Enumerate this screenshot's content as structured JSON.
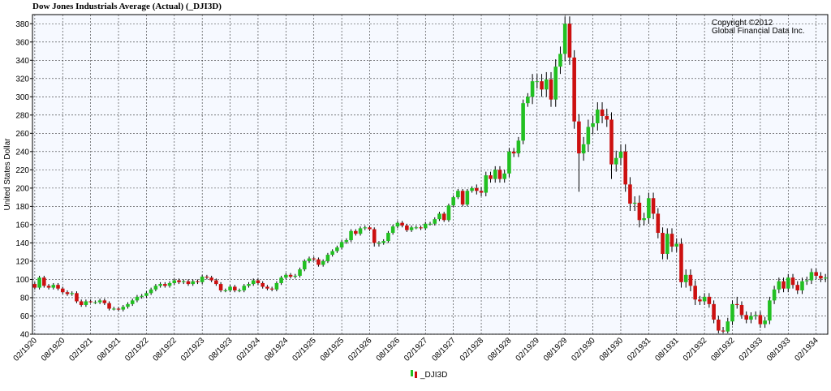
{
  "chart_data": {
    "type": "candlestick",
    "title": "Dow Jones Industrials Average (Actual) (_DJI3D)",
    "y_label": "United States Dollar",
    "annotation": [
      "Copyright ©2012",
      "Global Financial Data Inc."
    ],
    "grid": true,
    "up_color": "#22c022",
    "down_color": "#cc1010",
    "wick_color": "#000000",
    "ylim": [
      40,
      390
    ],
    "yticks": [
      40,
      60,
      80,
      100,
      120,
      140,
      160,
      180,
      200,
      220,
      240,
      260,
      280,
      300,
      320,
      340,
      360,
      380
    ],
    "categories": [
      "02/1920",
      null,
      null,
      null,
      null,
      null,
      "08/1920",
      null,
      null,
      null,
      null,
      null,
      "02/1921",
      null,
      null,
      null,
      null,
      null,
      "08/1921",
      null,
      null,
      null,
      null,
      null,
      "02/1922",
      null,
      null,
      null,
      null,
      null,
      "08/1922",
      null,
      null,
      null,
      null,
      null,
      "02/1923",
      null,
      null,
      null,
      null,
      null,
      "08/1923",
      null,
      null,
      null,
      null,
      null,
      "02/1924",
      null,
      null,
      null,
      null,
      null,
      "08/1924",
      null,
      null,
      null,
      null,
      null,
      "02/1925",
      null,
      null,
      null,
      null,
      null,
      "08/1925",
      null,
      null,
      null,
      null,
      null,
      "02/1926",
      null,
      null,
      null,
      null,
      null,
      "08/1926",
      null,
      null,
      null,
      null,
      null,
      "02/1927",
      null,
      null,
      null,
      null,
      null,
      "08/1927",
      null,
      null,
      null,
      null,
      null,
      "02/1928",
      null,
      null,
      null,
      null,
      null,
      "08/1928",
      null,
      null,
      null,
      null,
      null,
      "02/1929",
      null,
      null,
      null,
      null,
      null,
      "08/1929",
      null,
      null,
      null,
      null,
      null,
      "02/1930",
      null,
      null,
      null,
      null,
      null,
      "08/1930",
      null,
      null,
      null,
      null,
      null,
      "02/1931",
      null,
      null,
      null,
      null,
      null,
      "08/1931",
      null,
      null,
      null,
      null,
      null,
      "02/1932",
      null,
      null,
      null,
      null,
      null,
      "08/1932",
      null,
      null,
      null,
      null,
      null,
      "02/1933",
      null,
      null,
      null,
      null,
      null,
      "08/1933",
      null,
      null,
      null,
      null,
      null,
      "02/1934",
      null,
      null
    ],
    "series": [
      {
        "name": "_DJI3D",
        "open": [
          95,
          91,
          102,
          93,
          91,
          94,
          90,
          86,
          84,
          85,
          76,
          72,
          76,
          75,
          75,
          77,
          74,
          68,
          68,
          67,
          70,
          73,
          77,
          81,
          82,
          85,
          89,
          93,
          95,
          93,
          96,
          99,
          97,
          98,
          95,
          98,
          97,
          103,
          102,
          99,
          95,
          88,
          88,
          92,
          88,
          88,
          93,
          95,
          99,
          96,
          92,
          90,
          89,
          96,
          102,
          105,
          103,
          104,
          111,
          120,
          123,
          122,
          116,
          120,
          127,
          131,
          135,
          141,
          143,
          153,
          150,
          156,
          157,
          155,
          140,
          140,
          142,
          151,
          158,
          162,
          159,
          154,
          157,
          157,
          156,
          161,
          161,
          166,
          172,
          165,
          181,
          190,
          197,
          182,
          197,
          200,
          197,
          195,
          214,
          210,
          220,
          210,
          216,
          240,
          238,
          252,
          293,
          300,
          317,
          317,
          308,
          319,
          297,
          333,
          347,
          380,
          343,
          273,
          238,
          248,
          267,
          271,
          286,
          279,
          275,
          226,
          233,
          240,
          204,
          183,
          184,
          165,
          167,
          189,
          172,
          151,
          128,
          150,
          136,
          139,
          97,
          105,
          93,
          78,
          76,
          81,
          73,
          56,
          44,
          43,
          54,
          73,
          72,
          61,
          56,
          60,
          61,
          51,
          55,
          77,
          89,
          98,
          90,
          102,
          94,
          88,
          98,
          99,
          108,
          104,
          101
        ],
        "high": [
          97,
          104,
          104,
          95,
          96,
          96,
          92,
          88,
          87,
          87,
          78,
          78,
          78,
          77,
          79,
          79,
          76,
          70,
          70,
          72,
          75,
          79,
          83,
          84,
          87,
          91,
          95,
          97,
          97,
          98,
          101,
          101,
          100,
          100,
          100,
          100,
          105,
          105,
          104,
          101,
          97,
          90,
          94,
          94,
          90,
          95,
          97,
          101,
          101,
          98,
          94,
          92,
          98,
          104,
          107,
          107,
          106,
          113,
          122,
          125,
          125,
          124,
          122,
          129,
          133,
          137,
          143,
          145,
          155,
          155,
          158,
          159,
          159,
          157,
          142,
          144,
          153,
          160,
          164,
          164,
          161,
          159,
          159,
          159,
          163,
          163,
          168,
          174,
          174,
          183,
          192,
          199,
          199,
          199,
          202,
          204,
          201,
          218,
          218,
          224,
          224,
          220,
          244,
          244,
          256,
          297,
          304,
          325,
          325,
          325,
          327,
          327,
          341,
          355,
          388,
          388,
          351,
          281,
          256,
          275,
          279,
          294,
          294,
          287,
          283,
          241,
          248,
          248,
          212,
          191,
          192,
          173,
          195,
          195,
          178,
          157,
          156,
          156,
          145,
          145,
          111,
          111,
          99,
          82,
          85,
          85,
          77,
          60,
          48,
          58,
          77,
          81,
          76,
          65,
          64,
          65,
          65,
          59,
          81,
          93,
          102,
          102,
          106,
          106,
          98,
          102,
          103,
          112,
          112,
          108,
          106
        ],
        "low": [
          89,
          89,
          91,
          89,
          89,
          88,
          84,
          82,
          82,
          74,
          70,
          70,
          74,
          73,
          73,
          72,
          66,
          66,
          65,
          65,
          68,
          71,
          75,
          79,
          80,
          83,
          87,
          91,
          91,
          91,
          94,
          95,
          95,
          93,
          93,
          95,
          95,
          100,
          97,
          93,
          86,
          86,
          86,
          86,
          86,
          86,
          91,
          93,
          94,
          90,
          88,
          87,
          87,
          94,
          100,
          101,
          101,
          102,
          109,
          118,
          120,
          114,
          114,
          118,
          125,
          129,
          133,
          139,
          141,
          148,
          148,
          154,
          153,
          136,
          136,
          138,
          140,
          149,
          156,
          157,
          152,
          152,
          155,
          154,
          154,
          159,
          159,
          164,
          163,
          163,
          179,
          188,
          180,
          180,
          195,
          193,
          191,
          191,
          206,
          206,
          206,
          206,
          212,
          234,
          234,
          248,
          289,
          292,
          309,
          300,
          300,
          289,
          289,
          325,
          339,
          335,
          265,
          196,
          230,
          240,
          259,
          263,
          271,
          267,
          210,
          218,
          225,
          196,
          175,
          175,
          157,
          159,
          161,
          166,
          145,
          122,
          122,
          130,
          130,
          91,
          91,
          87,
          72,
          72,
          72,
          69,
          52,
          41,
          41,
          41,
          50,
          68,
          57,
          52,
          52,
          56,
          47,
          47,
          51,
          73,
          85,
          86,
          86,
          90,
          84,
          84,
          94,
          95,
          100,
          97,
          97
        ],
        "close": [
          91,
          102,
          93,
          91,
          94,
          90,
          86,
          84,
          85,
          76,
          72,
          76,
          75,
          75,
          77,
          74,
          68,
          68,
          67,
          70,
          73,
          77,
          81,
          82,
          85,
          89,
          93,
          95,
          93,
          96,
          99,
          97,
          98,
          95,
          98,
          97,
          103,
          102,
          99,
          95,
          88,
          88,
          92,
          88,
          88,
          93,
          95,
          99,
          96,
          92,
          90,
          89,
          96,
          102,
          105,
          103,
          104,
          111,
          120,
          123,
          122,
          116,
          120,
          127,
          131,
          135,
          141,
          143,
          153,
          150,
          156,
          157,
          155,
          140,
          140,
          142,
          151,
          158,
          162,
          159,
          154,
          157,
          157,
          156,
          161,
          161,
          166,
          172,
          165,
          181,
          190,
          197,
          182,
          197,
          200,
          197,
          195,
          214,
          210,
          220,
          210,
          216,
          240,
          238,
          252,
          293,
          300,
          317,
          317,
          308,
          319,
          297,
          333,
          347,
          380,
          343,
          273,
          238,
          248,
          267,
          271,
          286,
          279,
          275,
          226,
          233,
          240,
          204,
          183,
          184,
          165,
          167,
          189,
          172,
          151,
          128,
          150,
          136,
          139,
          97,
          105,
          93,
          78,
          76,
          81,
          73,
          56,
          44,
          43,
          54,
          73,
          72,
          61,
          56,
          60,
          61,
          51,
          55,
          77,
          89,
          98,
          90,
          102,
          94,
          88,
          98,
          99,
          108,
          104,
          101,
          102
        ]
      }
    ]
  }
}
